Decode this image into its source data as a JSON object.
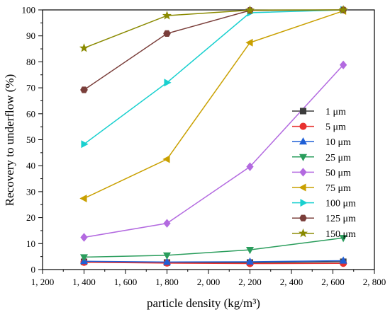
{
  "chart_data": {
    "type": "line",
    "xlabel": "particle density (kg/m³)",
    "ylabel": "Recovery to underflow (%)",
    "xlim": [
      1200,
      2800
    ],
    "ylim": [
      0,
      100
    ],
    "x_ticks": [
      1200,
      1400,
      1600,
      1800,
      2000,
      2200,
      2400,
      2600,
      2800
    ],
    "x_tick_labels": [
      "1, 200",
      "1, 400",
      "1, 600",
      "1, 800",
      "2, 000",
      "2, 200",
      "2, 400",
      "2, 600",
      "2, 800"
    ],
    "y_ticks": [
      0,
      10,
      20,
      30,
      40,
      50,
      60,
      70,
      80,
      90,
      100
    ],
    "y_tick_labels": [
      "0",
      "10",
      "20",
      "30",
      "40",
      "50",
      "60",
      "70",
      "80",
      "90",
      "100"
    ],
    "grid": false,
    "legend_position": "right",
    "x": [
      1400,
      1800,
      2200,
      2650
    ],
    "series": [
      {
        "name": "1 μm",
        "marker": "square",
        "color": "#3c3c3c",
        "values": [
          3.0,
          2.7,
          2.7,
          3.0
        ]
      },
      {
        "name": "5 μm",
        "marker": "circle",
        "color": "#e8312f",
        "values": [
          2.8,
          2.5,
          2.3,
          2.4
        ]
      },
      {
        "name": "10 μm",
        "marker": "triangle-up",
        "color": "#1f5fd6",
        "values": [
          3.2,
          2.9,
          3.0,
          3.4
        ]
      },
      {
        "name": "25 μm",
        "marker": "triangle-down",
        "color": "#2a9d5c",
        "values": [
          4.8,
          5.5,
          7.6,
          12.2
        ]
      },
      {
        "name": "50 μm",
        "marker": "diamond",
        "color": "#b36ae0",
        "values": [
          12.4,
          17.8,
          39.6,
          78.8
        ]
      },
      {
        "name": "75 μm",
        "marker": "triangle-left",
        "color": "#c9a000",
        "values": [
          27.4,
          42.5,
          87.4,
          99.6
        ]
      },
      {
        "name": "100 μm",
        "marker": "triangle-right",
        "color": "#19d0cf",
        "values": [
          48.3,
          72.0,
          98.9,
          100
        ]
      },
      {
        "name": "125 μm",
        "marker": "hexagon",
        "color": "#7a3e3a",
        "values": [
          69.2,
          90.9,
          99.8,
          100
        ]
      },
      {
        "name": "150 μm",
        "marker": "star",
        "color": "#8a8a00",
        "values": [
          85.3,
          97.8,
          99.9,
          100
        ]
      }
    ]
  }
}
